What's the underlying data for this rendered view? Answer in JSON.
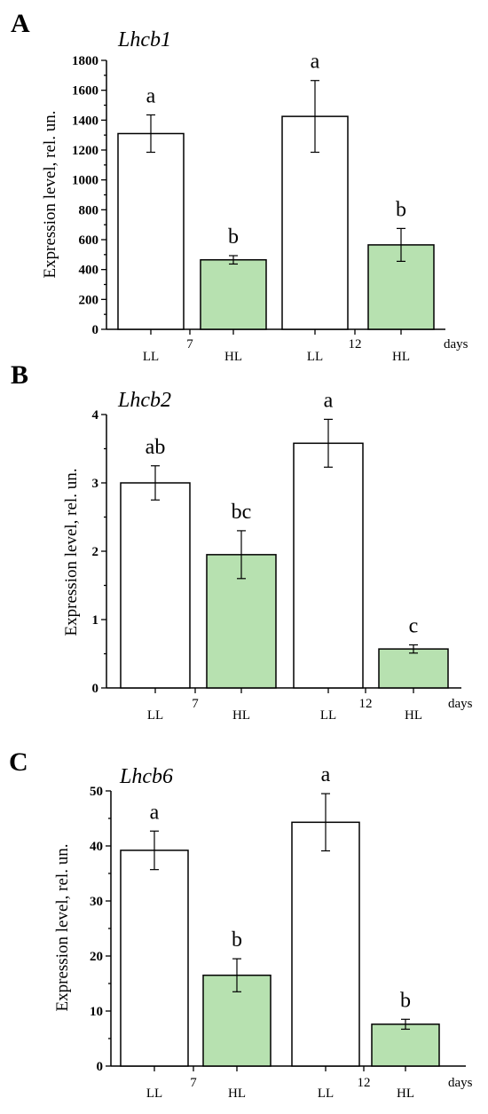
{
  "colors": {
    "LL": "#ffffff",
    "HL": "#b7e1b0",
    "outline": "#000000"
  },
  "chart_data": [
    {
      "panel": "A",
      "type": "bar",
      "title": "Lhcb1",
      "ylabel": "Expression level, rel. un.",
      "xlabel": "days",
      "ylim": [
        0,
        1800
      ],
      "yticks": [
        0,
        200,
        400,
        600,
        800,
        1000,
        1200,
        1400,
        1600,
        1800
      ],
      "day_labels": [
        "7",
        "12"
      ],
      "categories": [
        "LL",
        "HL",
        "LL",
        "HL"
      ],
      "values": [
        1310,
        465,
        1425,
        565
      ],
      "errors": [
        125,
        28,
        240,
        110
      ],
      "significance": [
        "a",
        "b",
        "a",
        "b"
      ],
      "grid": false
    },
    {
      "panel": "B",
      "type": "bar",
      "title": "Lhcb2",
      "ylabel": "Expression level, rel. un.",
      "xlabel": "days",
      "ylim": [
        0,
        4
      ],
      "yticks": [
        0,
        1,
        2,
        3,
        4
      ],
      "day_labels": [
        "7",
        "12"
      ],
      "categories": [
        "LL",
        "HL",
        "LL",
        "HL"
      ],
      "values": [
        3.0,
        1.95,
        3.58,
        0.57
      ],
      "errors": [
        0.25,
        0.35,
        0.35,
        0.06
      ],
      "significance": [
        "ab",
        "bc",
        "a",
        "c"
      ],
      "grid": false
    },
    {
      "panel": "C",
      "type": "bar",
      "title": "Lhcb6",
      "ylabel": "Expression level, rel. un.",
      "xlabel": "days",
      "ylim": [
        0,
        50
      ],
      "yticks": [
        0,
        10,
        20,
        30,
        40,
        50
      ],
      "day_labels": [
        "7",
        "12"
      ],
      "categories": [
        "LL",
        "HL",
        "LL",
        "HL"
      ],
      "values": [
        39.2,
        16.5,
        44.3,
        7.6
      ],
      "errors": [
        3.5,
        3.0,
        5.2,
        0.9
      ],
      "significance": [
        "a",
        "b",
        "a",
        "b"
      ],
      "grid": false
    }
  ]
}
